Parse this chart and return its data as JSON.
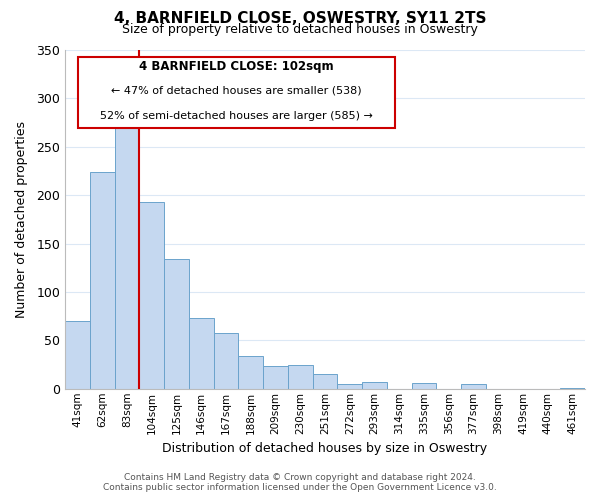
{
  "title": "4, BARNFIELD CLOSE, OSWESTRY, SY11 2TS",
  "subtitle": "Size of property relative to detached houses in Oswestry",
  "xlabel": "Distribution of detached houses by size in Oswestry",
  "ylabel": "Number of detached properties",
  "bar_labels": [
    "41sqm",
    "62sqm",
    "83sqm",
    "104sqm",
    "125sqm",
    "146sqm",
    "167sqm",
    "188sqm",
    "209sqm",
    "230sqm",
    "251sqm",
    "272sqm",
    "293sqm",
    "314sqm",
    "335sqm",
    "356sqm",
    "377sqm",
    "398sqm",
    "419sqm",
    "440sqm",
    "461sqm"
  ],
  "bar_values": [
    70,
    224,
    280,
    193,
    134,
    73,
    58,
    34,
    24,
    25,
    15,
    5,
    7,
    0,
    6,
    0,
    5,
    0,
    0,
    0,
    1
  ],
  "bar_color": "#c5d8f0",
  "bar_edge_color": "#6ba3cc",
  "red_line_after_bar": 2,
  "highlight_color": "#cc0000",
  "annotation_title": "4 BARNFIELD CLOSE: 102sqm",
  "annotation_line1": "← 47% of detached houses are smaller (538)",
  "annotation_line2": "52% of semi-detached houses are larger (585) →",
  "annotation_box_color": "#ffffff",
  "annotation_box_edge": "#cc0000",
  "ylim": [
    0,
    350
  ],
  "yticks": [
    0,
    50,
    100,
    150,
    200,
    250,
    300,
    350
  ],
  "footer_line1": "Contains HM Land Registry data © Crown copyright and database right 2024.",
  "footer_line2": "Contains public sector information licensed under the Open Government Licence v3.0.",
  "background_color": "#ffffff",
  "grid_color": "#dce8f5"
}
